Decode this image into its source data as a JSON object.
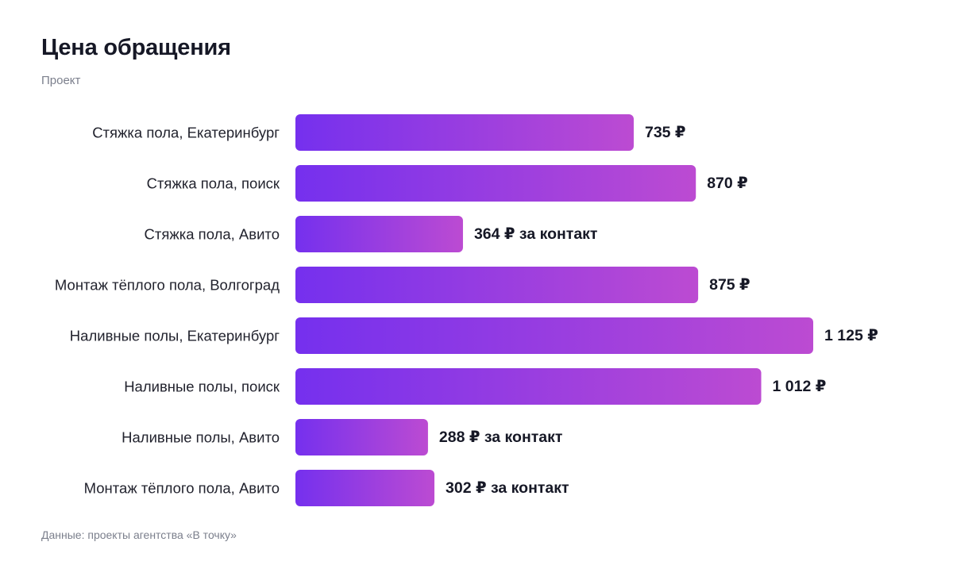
{
  "header": {
    "title": "Цена обращения",
    "subtitle": "Проект"
  },
  "footer": {
    "source": "Данные: проекты агентства «В точку»"
  },
  "colors": {
    "bar_gradient_start": "#7530ee",
    "bar_gradient_end": "#bc4bd2",
    "text": "#161826",
    "muted": "#7b7f8c"
  },
  "chart_data": {
    "type": "bar",
    "orientation": "horizontal",
    "title": "Цена обращения",
    "subtitle": "Проект",
    "categories": [
      "Стяжка пола, Екатеринбург",
      "Стяжка пола, поиск",
      "Стяжка пола, Авито",
      "Монтаж тёплого пола, Волгоград",
      "Наливные полы, Екатеринбург",
      "Наливные полы, поиск",
      "Наливные полы, Авито",
      "Монтаж тёплого пола, Авито"
    ],
    "values": [
      735,
      870,
      364,
      875,
      1125,
      1012,
      288,
      302
    ],
    "value_labels": [
      "735 ₽",
      "870 ₽",
      "364 ₽ за контакт",
      "875 ₽",
      "1 125 ₽",
      "1 012 ₽",
      "288 ₽ за контакт",
      "302 ₽ за контакт"
    ],
    "unit": "₽",
    "xlim": [
      0,
      1125
    ],
    "grid": false,
    "legend": "none"
  }
}
